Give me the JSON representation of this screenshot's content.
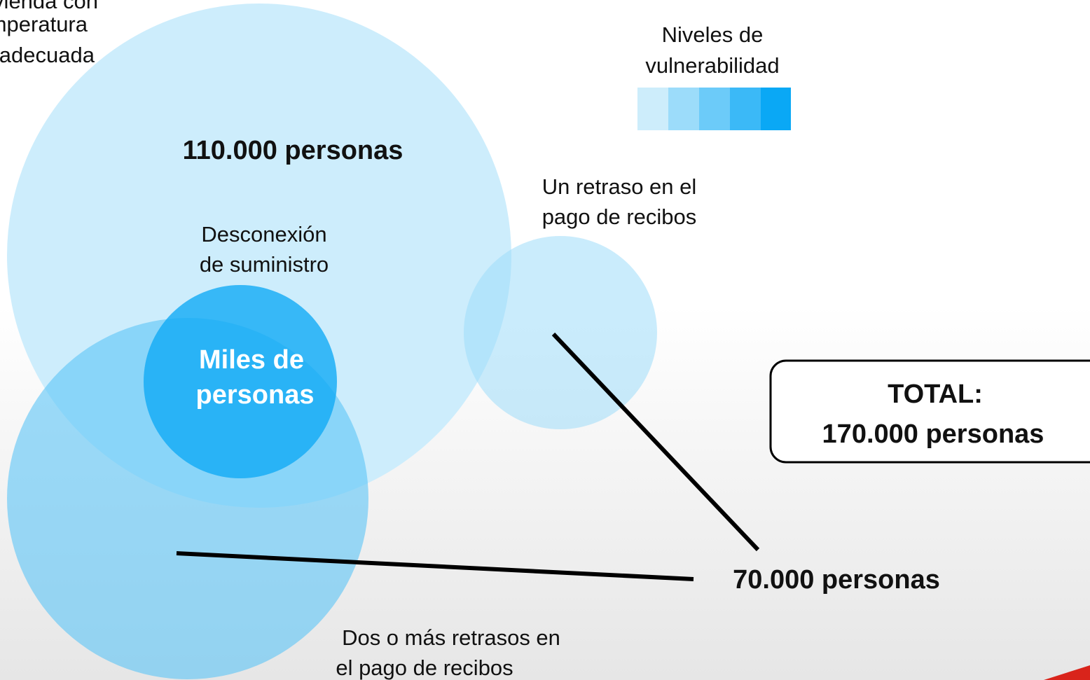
{
  "circles": {
    "housing": {
      "lines": [
        "Vivienda con",
        "temperatura",
        "inadecuada"
      ],
      "count": "110.000 personas"
    },
    "disconnection": {
      "lines": [
        "Desconexión",
        "de suministro"
      ],
      "count_lines": [
        "Miles de",
        "personas"
      ]
    },
    "one_delay": {
      "lines": [
        "Un retraso en el",
        "pago de recibos"
      ]
    },
    "two_delays": {
      "lines": [
        "Dos o más retrasos en",
        "el pago de recibos"
      ]
    }
  },
  "shared_count": "70.000 personas",
  "legend": {
    "lines": [
      "Niveles de",
      "vulnerabilidad"
    ]
  },
  "total": {
    "lines": [
      "TOTAL:",
      "170.000 personas"
    ]
  }
}
